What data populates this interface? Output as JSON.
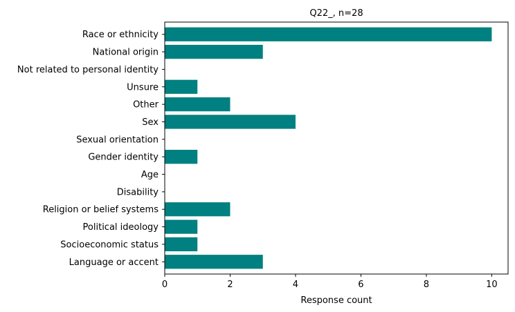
{
  "chart_data": {
    "type": "bar",
    "orientation": "horizontal",
    "title": "Q22_, n=28",
    "xlabel": "Response count",
    "ylabel": "",
    "categories": [
      "Race or ethnicity",
      "National origin",
      "Not related to personal identity",
      "Unsure",
      "Other",
      "Sex",
      "Sexual orientation",
      "Gender identity",
      "Age",
      "Disability",
      "Religion or belief systems",
      "Political ideology",
      "Socioeconomic status",
      "Language or accent"
    ],
    "values": [
      10,
      3,
      0,
      1,
      2,
      4,
      0,
      1,
      0,
      0,
      2,
      1,
      1,
      3
    ],
    "xlim": [
      0,
      10.5
    ],
    "xticks": [
      0,
      2,
      4,
      6,
      8,
      10
    ],
    "grid": false,
    "legend": "none",
    "bar_color": "#008080"
  }
}
